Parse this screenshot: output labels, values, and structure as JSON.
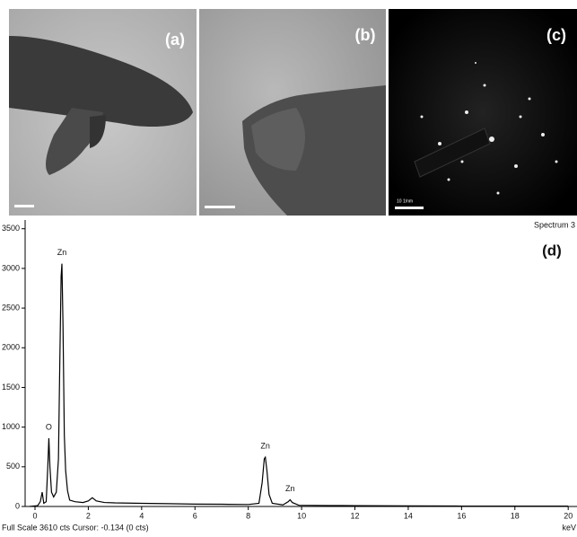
{
  "panels": [
    {
      "label": "(a)"
    },
    {
      "label": "(b)"
    },
    {
      "label": "(c)",
      "scale_text": "10 1/nm"
    }
  ],
  "chart_data": {
    "type": "line",
    "title": "Spectrum 3",
    "panel_label": "(d)",
    "footer": "Full Scale 3610 cts Cursor: -0.134  (0 cts)",
    "x_label": "keV",
    "x": [
      -0.2,
      0.1,
      0.2,
      0.27,
      0.33,
      0.42,
      0.48,
      0.52,
      0.56,
      0.62,
      0.7,
      0.8,
      0.88,
      0.93,
      0.98,
      1.01,
      1.05,
      1.1,
      1.15,
      1.22,
      1.3,
      1.5,
      1.8,
      2.0,
      2.15,
      2.3,
      2.6,
      3,
      4,
      5,
      6,
      7,
      8,
      8.4,
      8.52,
      8.6,
      8.64,
      8.7,
      8.78,
      8.9,
      9.3,
      9.5,
      9.57,
      9.65,
      9.9,
      11,
      12,
      14,
      16,
      18,
      20
    ],
    "series": [
      {
        "color": "#000000",
        "values": [
          0,
          10,
          60,
          180,
          40,
          60,
          500,
          860,
          500,
          180,
          120,
          180,
          600,
          1800,
          2900,
          3060,
          2300,
          900,
          450,
          200,
          80,
          60,
          50,
          70,
          110,
          70,
          50,
          45,
          40,
          35,
          30,
          28,
          25,
          40,
          300,
          600,
          620,
          450,
          150,
          40,
          20,
          60,
          85,
          50,
          15,
          12,
          10,
          8,
          5,
          5,
          5
        ]
      }
    ],
    "annotations": [
      {
        "text": "O",
        "x": 0.52,
        "y": 860
      },
      {
        "text": "Zn",
        "x": 1.01,
        "y": 3060
      },
      {
        "text": "Zn",
        "x": 8.64,
        "y": 620
      },
      {
        "text": "Zn",
        "x": 9.57,
        "y": 85
      }
    ],
    "xlim": [
      -0.37,
      20.33
    ],
    "ylim": [
      0,
      3610
    ],
    "xticks": [
      0,
      2,
      4,
      6,
      8,
      10,
      12,
      14,
      16,
      18,
      20
    ],
    "yticks": [
      0,
      500,
      1000,
      1500,
      2000,
      2500,
      3000,
      3500
    ]
  }
}
